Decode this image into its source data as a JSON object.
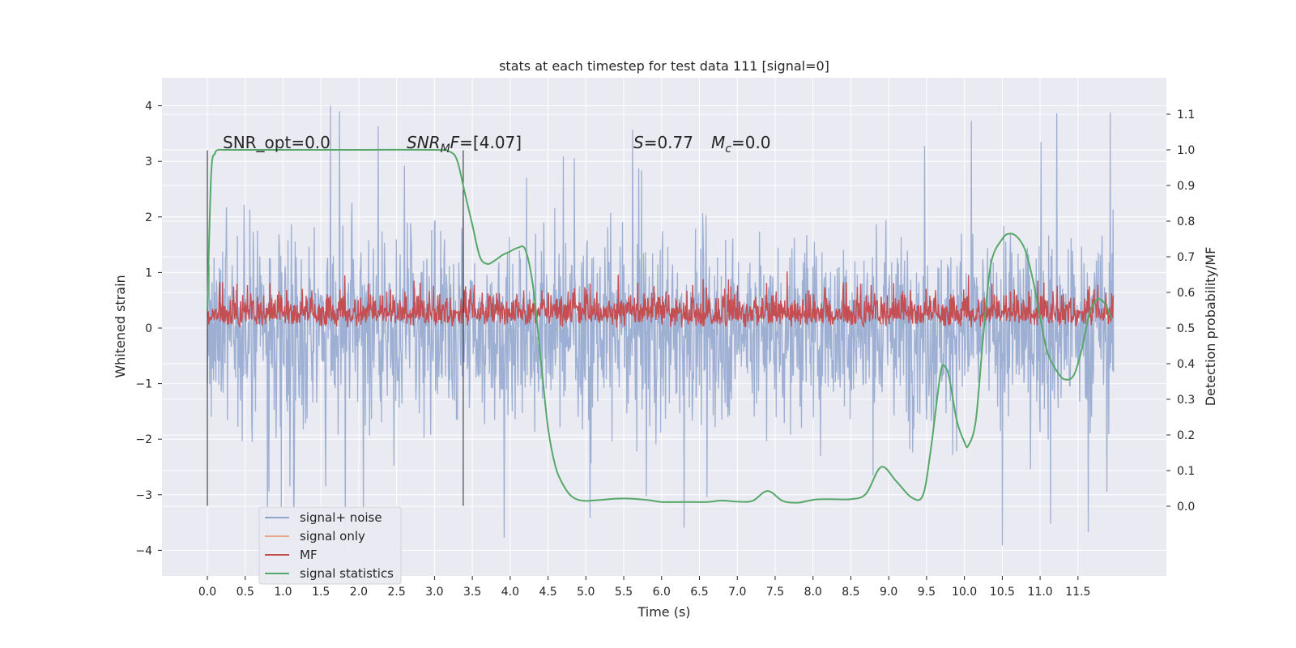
{
  "chart_data": {
    "type": "line",
    "title": "stats at each timestep for test data 111 [signal=0]",
    "xlabel": "Time (s)",
    "ylabel_left": "Whitened strain",
    "ylabel_right": "Detection probability/MF",
    "xlim": [
      -0.5,
      12.4
    ],
    "ylim_left": [
      -4.45,
      4.45
    ],
    "ylim_right": [
      -0.22,
      1.17
    ],
    "x_ticks": [
      "0.0",
      "0.5",
      "1.0",
      "1.5",
      "2.0",
      "2.5",
      "3.0",
      "3.5",
      "4.0",
      "4.5",
      "5.0",
      "5.5",
      "6.0",
      "6.5",
      "7.0",
      "7.5",
      "8.0",
      "8.5",
      "9.0",
      "9.5",
      "10.0",
      "10.5",
      "11.0",
      "11.5"
    ],
    "y_left_ticks": [
      "4",
      "3",
      "2",
      "1",
      "0",
      "−1",
      "−2",
      "−3",
      "−4"
    ],
    "y_right_ticks": [
      "1.1",
      "1.0",
      "0.9",
      "0.8",
      "0.7",
      "0.6",
      "0.5",
      "0.4",
      "0.3",
      "0.2",
      "0.1",
      "0.0"
    ],
    "grid": true,
    "legend_position": "lower-left",
    "legend": [
      {
        "label": "signal+ noise",
        "color": "#8fa5cc"
      },
      {
        "label": "signal only",
        "color": "#e8a788"
      },
      {
        "label": "MF",
        "color": "#c44e52"
      },
      {
        "label": "signal statistics",
        "color": "#55a868"
      }
    ],
    "annotations": {
      "snr_opt": "SNR_opt=0.0",
      "snr_mf_a": "SNR",
      "snr_mf_sub": "M",
      "snr_mf_b": "F",
      "snr_mf_value": "=[4.07]",
      "s_sym": "S",
      "s_value": "=0.77",
      "mc_sym": "M",
      "mc_sub": "c",
      "mc_value": "=0.0"
    },
    "vertical_lines_x": [
      0.0,
      3.38
    ],
    "series": [
      {
        "name": "signal+ noise",
        "color": "#8fa5cc",
        "x_range": [
          0.0,
          11.97
        ],
        "envelope": {
          "typical_min": -1.9,
          "typical_max": 1.9,
          "peak_min": -4.1,
          "peak_max": 4.1
        }
      },
      {
        "name": "signal only",
        "color": "#e8a788",
        "note": "zero signal",
        "x_range": [
          0.0,
          11.97
        ],
        "values_constant": 0.0
      },
      {
        "name": "MF",
        "color": "#c44e52",
        "x_range": [
          0.0,
          11.97
        ],
        "band_right_axis": [
          0.5,
          0.6
        ],
        "peak_right_axis": 0.66
      },
      {
        "name": "signal statistics",
        "color": "#55a868",
        "axis": "right",
        "x": [
          0.0,
          0.05,
          0.1,
          0.15,
          0.2,
          0.3,
          0.5,
          1.0,
          2.0,
          3.0,
          3.2,
          3.3,
          3.4,
          3.5,
          3.6,
          3.7,
          3.8,
          3.9,
          4.0,
          4.1,
          4.2,
          4.3,
          4.4,
          4.5,
          4.6,
          4.7,
          4.8,
          4.9,
          5.0,
          5.2,
          5.5,
          5.8,
          6.0,
          6.3,
          6.6,
          6.8,
          7.0,
          7.2,
          7.4,
          7.6,
          7.8,
          8.0,
          8.2,
          8.5,
          8.7,
          8.9,
          9.1,
          9.3,
          9.45,
          9.55,
          9.65,
          9.7,
          9.75,
          9.8,
          9.9,
          10.0,
          10.05,
          10.15,
          10.25,
          10.35,
          10.5,
          10.6,
          10.7,
          10.8,
          10.9,
          11.0,
          11.1,
          11.25,
          11.35,
          11.45,
          11.55,
          11.65,
          11.75,
          11.85,
          11.95
        ],
        "values": [
          0.55,
          0.93,
          0.99,
          1.0,
          1.0,
          1.0,
          1.0,
          1.0,
          1.0,
          1.0,
          0.995,
          0.97,
          0.88,
          0.79,
          0.7,
          0.68,
          0.69,
          0.705,
          0.715,
          0.725,
          0.72,
          0.62,
          0.42,
          0.22,
          0.11,
          0.06,
          0.03,
          0.018,
          0.015,
          0.018,
          0.022,
          0.018,
          0.012,
          0.012,
          0.012,
          0.016,
          0.013,
          0.015,
          0.043,
          0.015,
          0.01,
          0.018,
          0.02,
          0.02,
          0.035,
          0.11,
          0.07,
          0.025,
          0.03,
          0.15,
          0.32,
          0.39,
          0.39,
          0.36,
          0.24,
          0.18,
          0.17,
          0.24,
          0.48,
          0.68,
          0.75,
          0.765,
          0.755,
          0.72,
          0.64,
          0.53,
          0.43,
          0.37,
          0.355,
          0.37,
          0.44,
          0.54,
          0.58,
          0.57,
          0.525
        ]
      }
    ]
  }
}
